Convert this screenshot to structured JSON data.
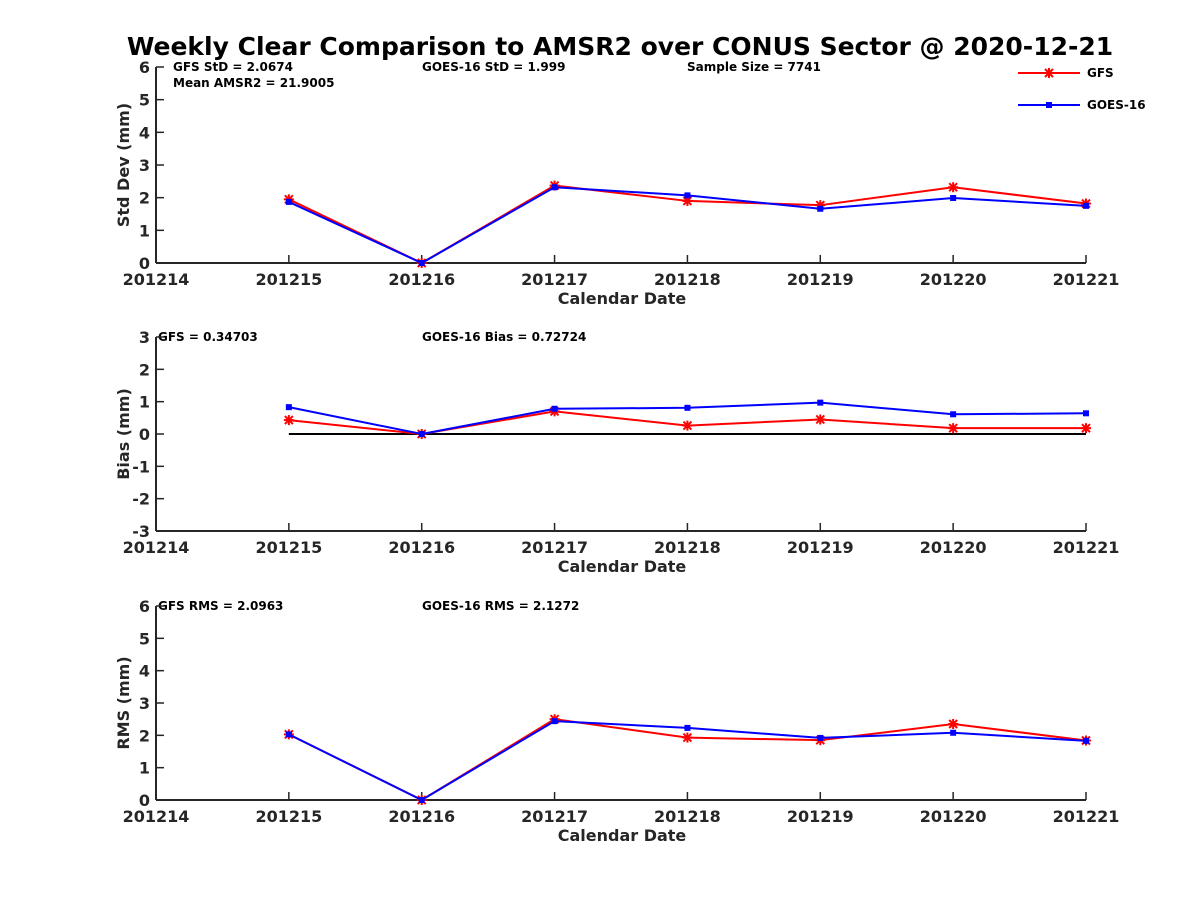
{
  "title": "Weekly Clear Comparison to AMSR2 over CONUS Sector @ 2020-12-21",
  "legend": [
    {
      "name": "GFS",
      "color": "#ff0000",
      "marker": "asterisk"
    },
    {
      "name": "GOES-16",
      "color": "#0000ff",
      "marker": "square"
    }
  ],
  "annotations": {
    "p1": [
      "GFS StD = 2.0674",
      "GOES-16 StD = 1.999",
      "Sample Size = 7741",
      "Mean AMSR2 = 21.9005"
    ],
    "p2": [
      "GFS = 0.34703",
      "GOES-16 Bias  = 0.72724"
    ],
    "p3": [
      "GFS RMS = 2.0963",
      "GOES-16 RMS = 2.1272"
    ]
  },
  "chart_data": [
    {
      "type": "line",
      "xlabel": "Calendar Date",
      "ylabel": "Std Dev (mm)",
      "x_ticks": [
        "201214",
        "201215",
        "201216",
        "201217",
        "201218",
        "201219",
        "201220",
        "201221"
      ],
      "y_ticks": [
        "0",
        "1",
        "2",
        "3",
        "4",
        "5",
        "6"
      ],
      "ylim": [
        0,
        6
      ],
      "x": [
        "201215",
        "201216",
        "201217",
        "201218",
        "201219",
        "201220",
        "201221"
      ],
      "series": [
        {
          "name": "GFS",
          "color": "#ff0000",
          "marker": "asterisk",
          "values": [
            1.95,
            0.0,
            2.37,
            1.9,
            1.77,
            2.32,
            1.82
          ]
        },
        {
          "name": "GOES-16",
          "color": "#0000ff",
          "marker": "square",
          "values": [
            1.87,
            0.0,
            2.32,
            2.07,
            1.66,
            1.99,
            1.75
          ]
        }
      ]
    },
    {
      "type": "line",
      "xlabel": "Calendar Date",
      "ylabel": "Bias (mm)",
      "x_ticks": [
        "201214",
        "201215",
        "201216",
        "201217",
        "201218",
        "201219",
        "201220",
        "201221"
      ],
      "y_ticks": [
        "-3",
        "-2",
        "-1",
        "0",
        "1",
        "2",
        "3"
      ],
      "ylim": [
        -3,
        3
      ],
      "zero_line": true,
      "x": [
        "201215",
        "201216",
        "201217",
        "201218",
        "201219",
        "201220",
        "201221"
      ],
      "series": [
        {
          "name": "GFS",
          "color": "#ff0000",
          "marker": "asterisk",
          "values": [
            0.43,
            0.0,
            0.7,
            0.26,
            0.45,
            0.18,
            0.18
          ]
        },
        {
          "name": "GOES-16",
          "color": "#0000ff",
          "marker": "square",
          "values": [
            0.83,
            0.0,
            0.78,
            0.81,
            0.97,
            0.61,
            0.64
          ]
        }
      ]
    },
    {
      "type": "line",
      "xlabel": "Calendar Date",
      "ylabel": "RMS (mm)",
      "x_ticks": [
        "201214",
        "201215",
        "201216",
        "201217",
        "201218",
        "201219",
        "201220",
        "201221"
      ],
      "y_ticks": [
        "0",
        "1",
        "2",
        "3",
        "4",
        "5",
        "6"
      ],
      "ylim": [
        0,
        6
      ],
      "x": [
        "201215",
        "201216",
        "201217",
        "201218",
        "201219",
        "201220",
        "201221"
      ],
      "series": [
        {
          "name": "GFS",
          "color": "#ff0000",
          "marker": "asterisk",
          "values": [
            2.03,
            0.0,
            2.5,
            1.93,
            1.85,
            2.35,
            1.84
          ]
        },
        {
          "name": "GOES-16",
          "color": "#0000ff",
          "marker": "square",
          "values": [
            2.03,
            0.0,
            2.44,
            2.23,
            1.92,
            2.08,
            1.83
          ]
        }
      ]
    }
  ]
}
